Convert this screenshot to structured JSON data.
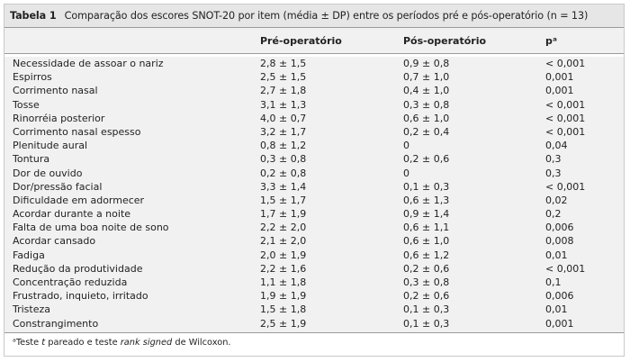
{
  "table": {
    "label": "Tabela 1",
    "caption": "Comparação dos escores SNOT-20 por item (média ± DP) entre os períodos pré e pós-operatório (n = 13)",
    "headers": [
      "",
      "Pré-operatório",
      "Pós-operatório",
      "pᵃ"
    ],
    "rows": [
      [
        "Necessidade de assoar o nariz",
        "2,8 ± 1,5",
        "0,9 ± 0,8",
        "< 0,001"
      ],
      [
        "Espirros",
        "2,5 ± 1,5",
        "0,7 ± 1,0",
        "0,001"
      ],
      [
        "Corrimento nasal",
        "2,7 ± 1,8",
        "0,4 ± 1,0",
        "0,001"
      ],
      [
        "Tosse",
        "3,1 ± 1,3",
        "0,3 ± 0,8",
        "< 0,001"
      ],
      [
        "Rinorréia posterior",
        "4,0 ± 0,7",
        "0,6 ± 1,0",
        "< 0,001"
      ],
      [
        "Corrimento nasal espesso",
        "3,2 ± 1,7",
        "0,2 ± 0,4",
        "< 0,001"
      ],
      [
        "Plenitude aural",
        "0,8 ± 1,2",
        "0",
        "0,04"
      ],
      [
        "Tontura",
        "0,3 ± 0,8",
        "0,2 ± 0,6",
        "0,3"
      ],
      [
        "Dor de ouvido",
        "0,2 ± 0,8",
        "0",
        "0,3"
      ],
      [
        "Dor/pressão facial",
        "3,3 ± 1,4",
        "0,1 ± 0,3",
        "< 0,001"
      ],
      [
        "Dificuldade em adormecer",
        "1,5 ± 1,7",
        "0,6 ± 1,3",
        "0,02"
      ],
      [
        "Acordar durante a noite",
        "1,7 ± 1,9",
        "0,9 ± 1,4",
        "0,2"
      ],
      [
        "Falta de uma boa noite de sono",
        "2,2 ± 2,0",
        "0,6 ± 1,1",
        "0,006"
      ],
      [
        "Acordar cansado",
        "2,1 ± 2,0",
        "0,6 ± 1,0",
        "0,008"
      ],
      [
        "Fadiga",
        "2,0 ± 1,9",
        "0,6 ± 1,2",
        "0,01"
      ],
      [
        "Redução da produtividade",
        "2,2 ± 1,6",
        "0,2 ± 0,6",
        "< 0,001"
      ],
      [
        "Concentração reduzida",
        "1,1 ± 1,8",
        "0,3 ± 0,8",
        "0,1"
      ],
      [
        "Frustrado, inquieto, irritado",
        "1,9 ± 1,9",
        "0,2 ± 0,6",
        "0,006"
      ],
      [
        "Tristeza",
        "1,5 ± 1,8",
        "0,1 ± 0,3",
        "0,01"
      ],
      [
        "Constrangimento",
        "2,5 ± 1,9",
        "0,1 ± 0,3",
        "0,001"
      ]
    ],
    "footnote": {
      "marker": "ᵃ",
      "part1": "Teste ",
      "t_symbol": "t",
      "part2": " pareado e teste ",
      "rank_signed": "rank signed",
      "part3": " de Wilcoxon."
    }
  }
}
